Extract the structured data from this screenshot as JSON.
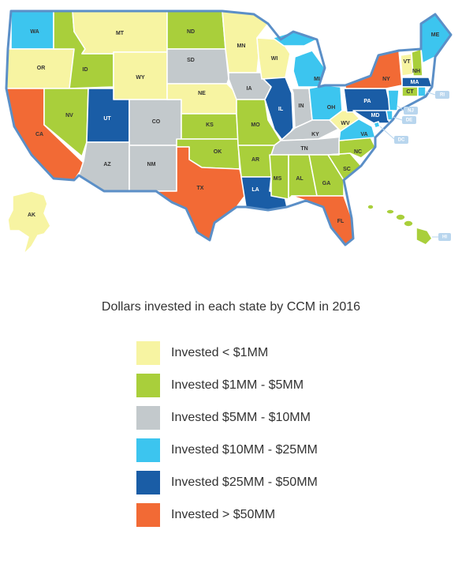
{
  "caption": "Dollars invested in each state by CCM in 2016",
  "colors": {
    "lt1": "#f7f4a2",
    "r1_5": "#a9cf3b",
    "r5_10": "#c3c9cc",
    "r10_25": "#3cc5ef",
    "r25_50": "#1a5da6",
    "gt50": "#f26a35"
  },
  "legend": [
    {
      "key": "lt1",
      "label": "Invested < $1MM"
    },
    {
      "key": "r1_5",
      "label": "Invested $1MM - $5MM"
    },
    {
      "key": "r5_10",
      "label": "Invested $5MM - $10MM"
    },
    {
      "key": "r10_25",
      "label": "Invested $10MM - $25MM"
    },
    {
      "key": "r25_50",
      "label": "Invested $25MM - $50MM"
    },
    {
      "key": "gt50",
      "label": "Invested > $50MM"
    }
  ],
  "states": {
    "WA": "r10_25",
    "OR": "lt1",
    "CA": "gt50",
    "ID": "r1_5",
    "NV": "r1_5",
    "MT": "lt1",
    "WY": "lt1",
    "UT": "r25_50",
    "AZ": "r5_10",
    "CO": "r5_10",
    "NM": "r5_10",
    "ND": "r1_5",
    "SD": "r5_10",
    "NE": "lt1",
    "KS": "r1_5",
    "OK": "r1_5",
    "TX": "gt50",
    "MN": "lt1",
    "IA": "r5_10",
    "MO": "r1_5",
    "AR": "r1_5",
    "LA": "r25_50",
    "WI": "lt1",
    "IL": "r25_50",
    "MI": "r10_25",
    "IN": "r5_10",
    "OH": "r10_25",
    "KY": "r5_10",
    "TN": "r5_10",
    "MS": "r1_5",
    "AL": "r1_5",
    "GA": "r1_5",
    "FL": "gt50",
    "SC": "r1_5",
    "NC": "r1_5",
    "VA": "r10_25",
    "WV": "lt1",
    "PA": "r25_50",
    "NY": "gt50",
    "VT": "lt1",
    "NH": "r1_5",
    "ME": "r10_25",
    "MA": "r25_50",
    "RI": "r10_25",
    "CT": "r1_5",
    "NJ": "r10_25",
    "DE": "r10_25",
    "MD": "r25_50",
    "DC": "r10_25",
    "AK": "lt1",
    "HI": "r1_5"
  }
}
